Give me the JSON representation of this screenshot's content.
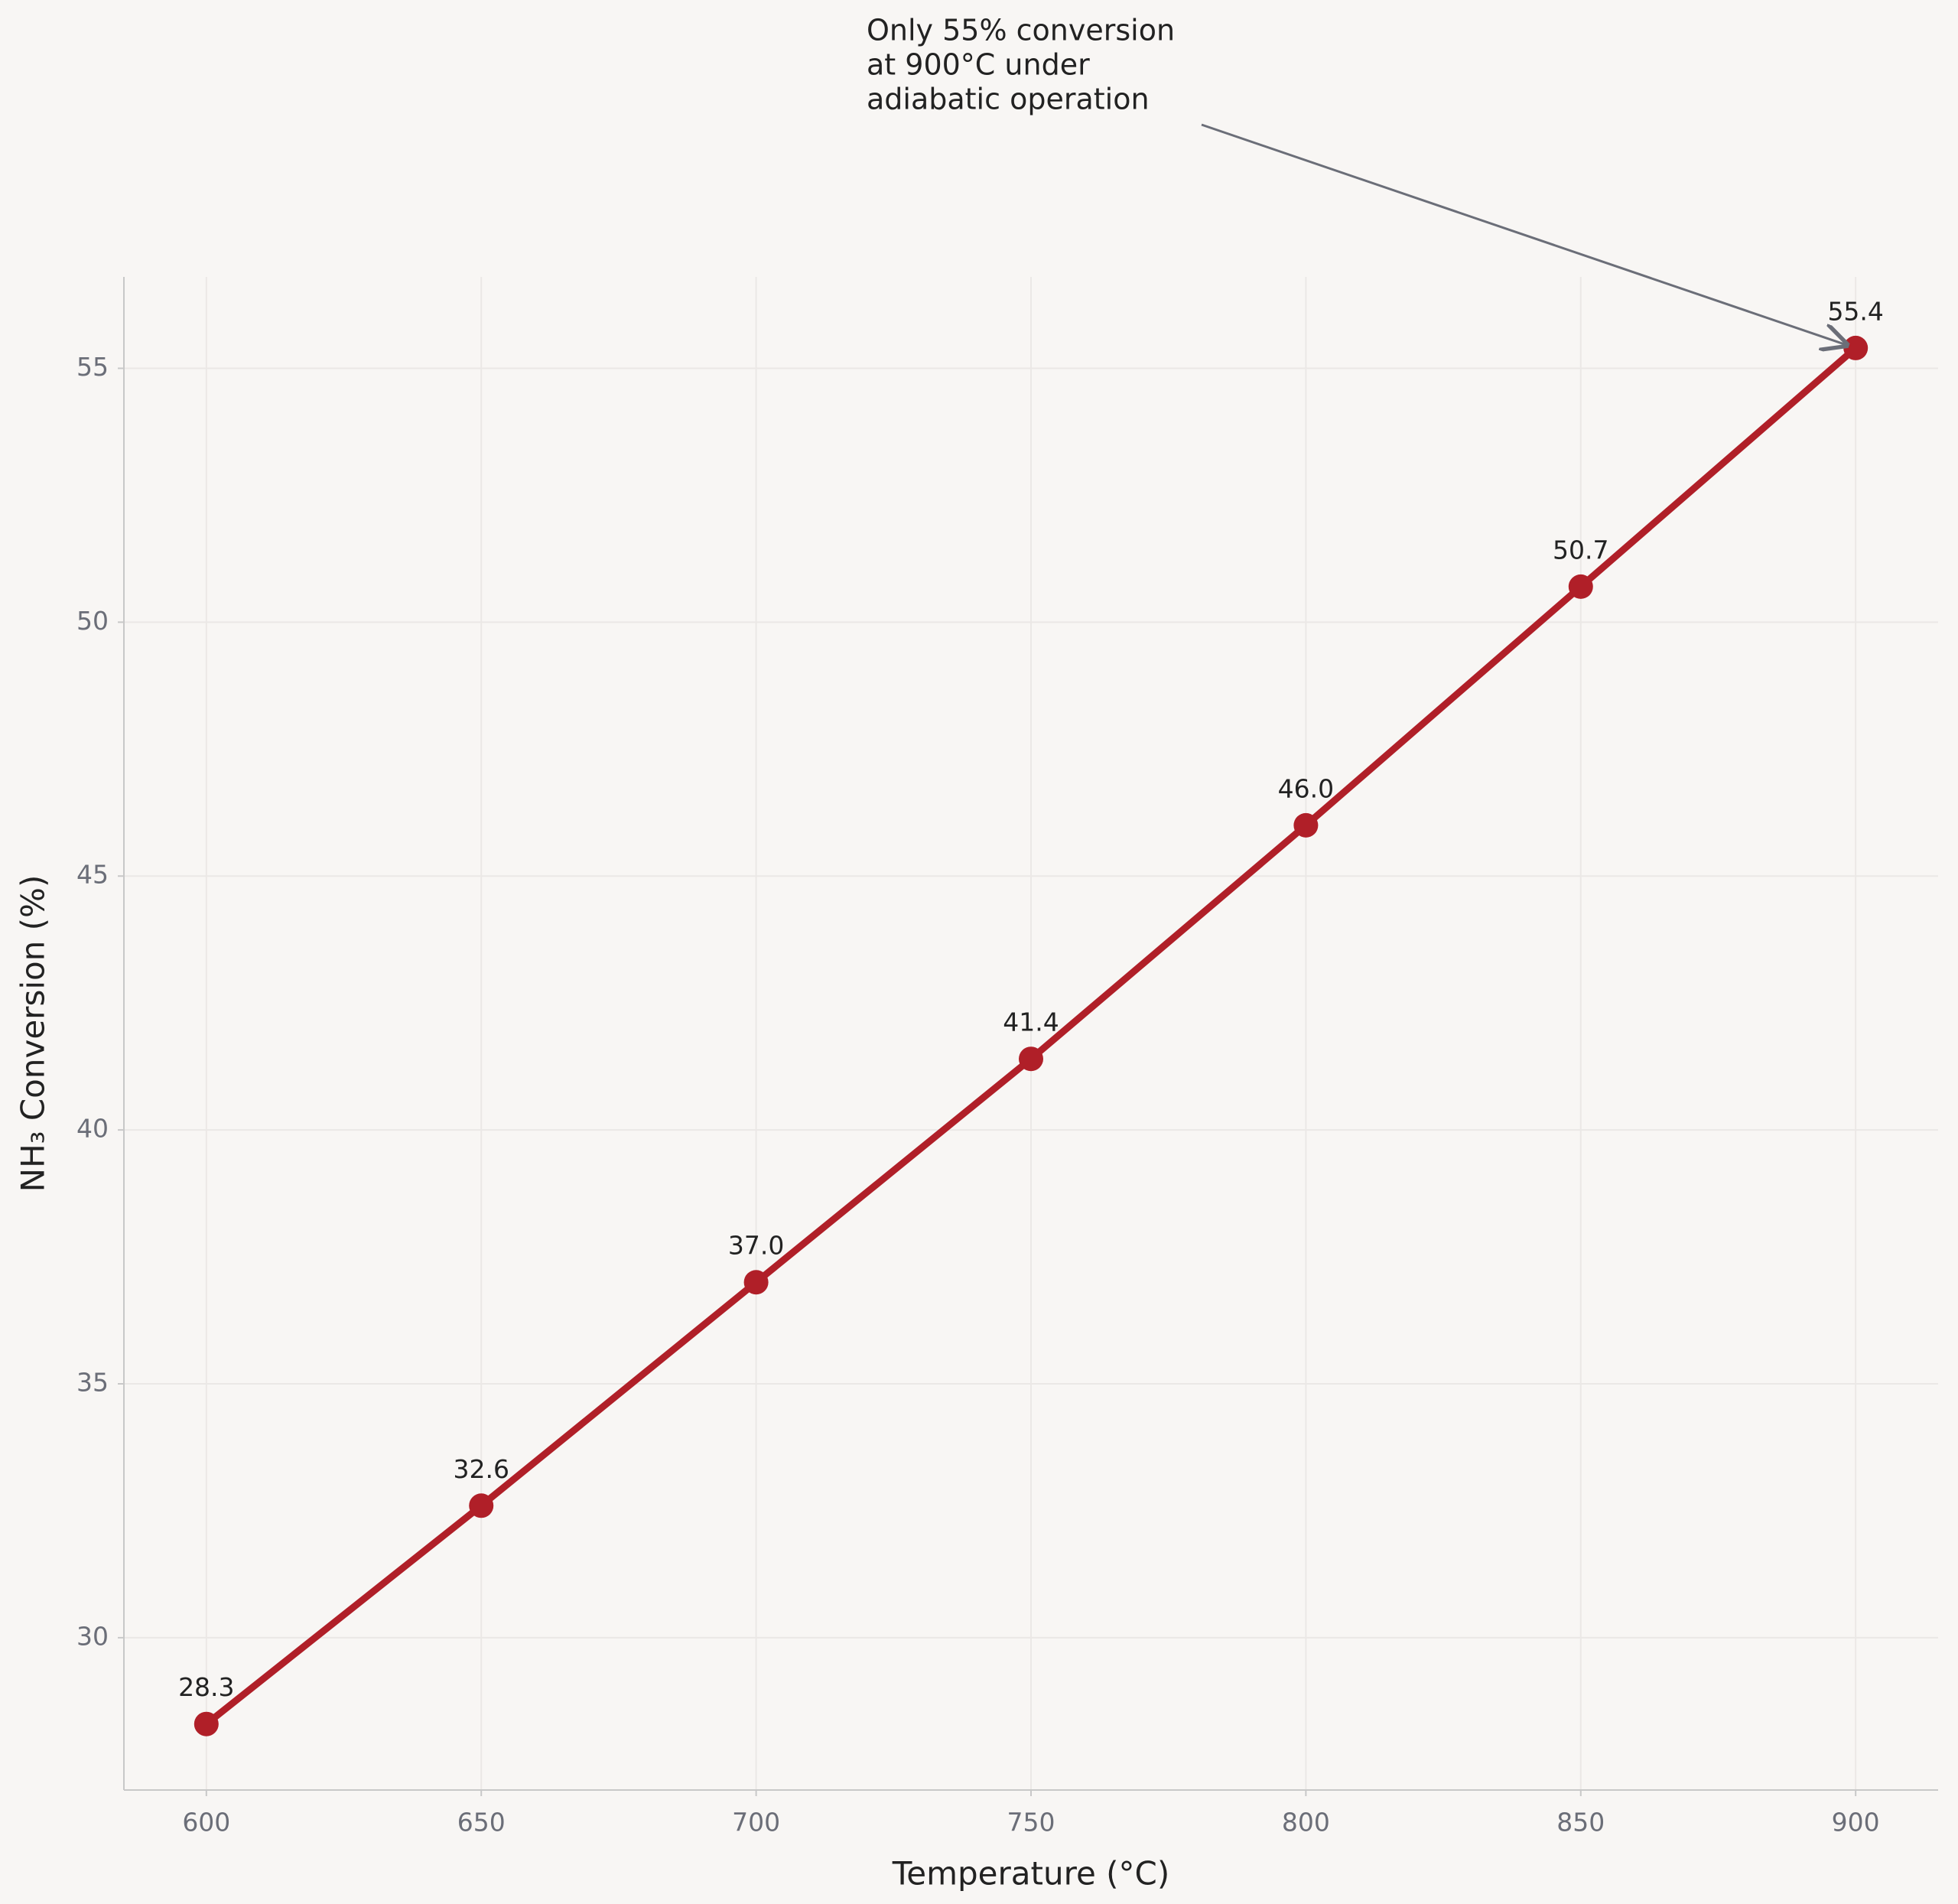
{
  "chart_data": {
    "type": "line",
    "x": [
      600,
      650,
      700,
      750,
      800,
      850,
      900
    ],
    "values": [
      28.3,
      32.6,
      37.0,
      41.4,
      46.0,
      50.7,
      55.4
    ],
    "value_labels": [
      "28.3",
      "32.6",
      "37.0",
      "41.4",
      "46.0",
      "50.7",
      "55.4"
    ],
    "color": "#b01f28",
    "xlabel": "Temperature (°C)",
    "ylabel": "NH₃ Conversion (%)",
    "xlim": [
      585,
      915
    ],
    "ylim": [
      27,
      56.8
    ],
    "xticks": [
      600,
      650,
      700,
      750,
      800,
      850,
      900
    ],
    "yticks": [
      30,
      35,
      40,
      45,
      50,
      55
    ],
    "grid": true,
    "annotation": [
      "Only 55% conversion",
      "at 900°C under",
      "adiabatic operation"
    ]
  }
}
